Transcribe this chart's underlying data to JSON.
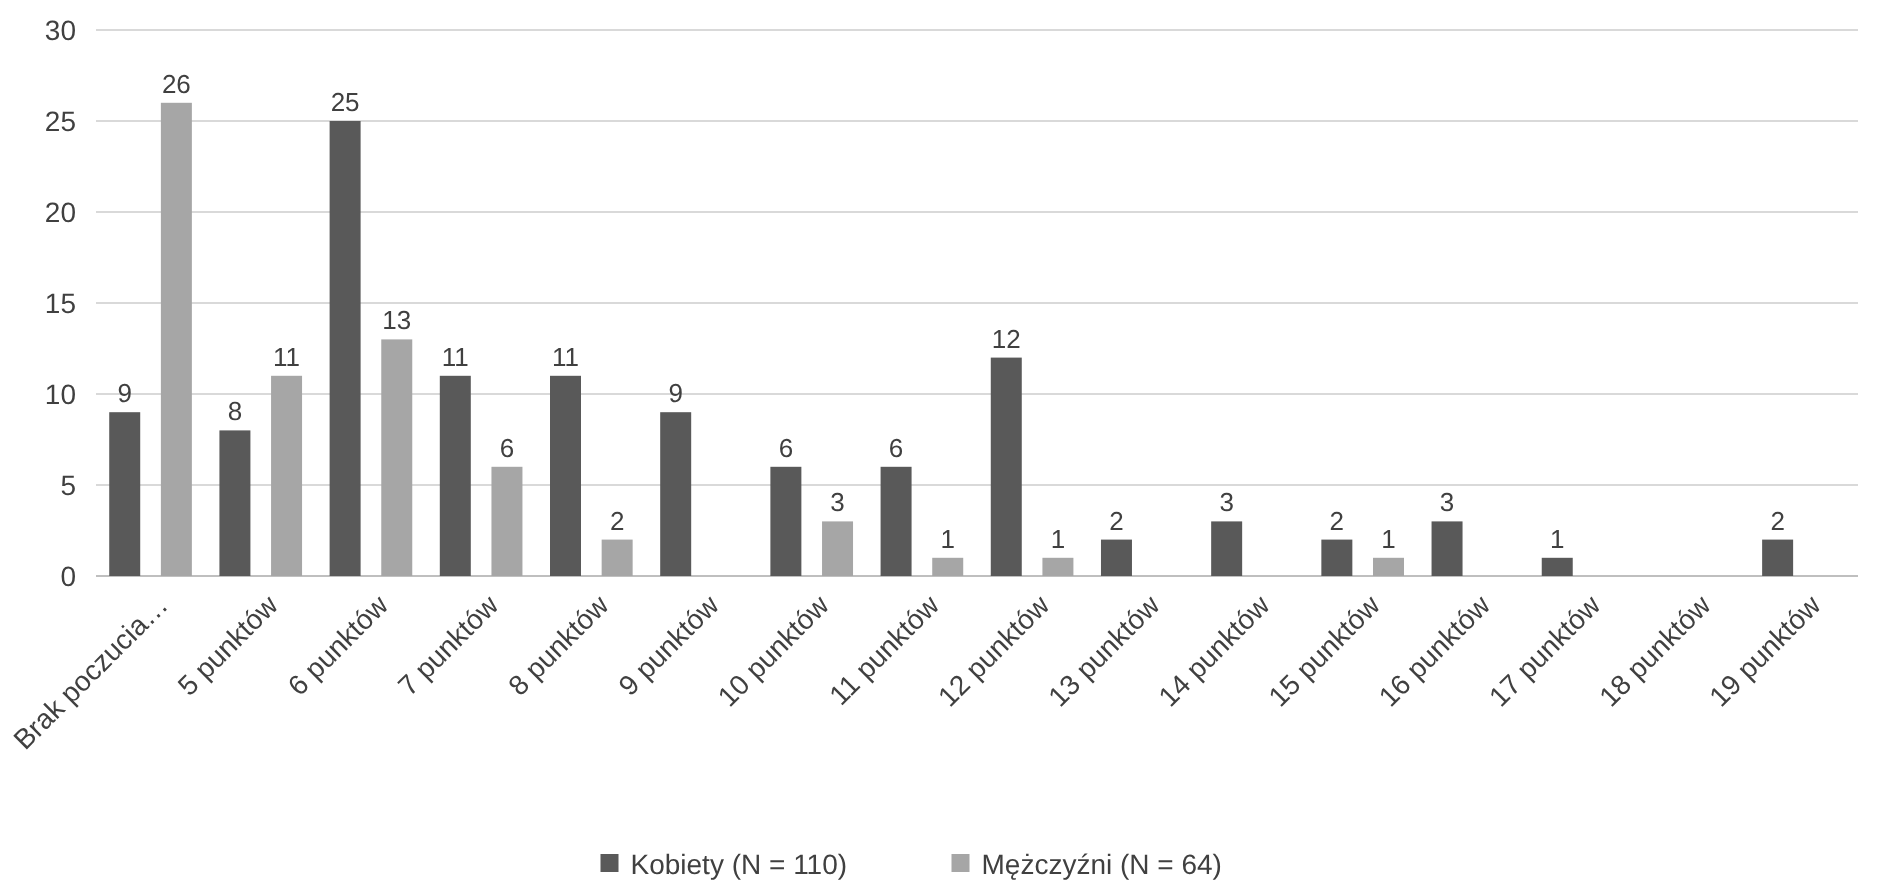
{
  "chart_data": {
    "type": "bar",
    "categories": [
      "Brak poczucia…",
      "5 punktów",
      "6 punktów",
      "7 punktów",
      "8 punktów",
      "9 punktów",
      "10 punktów",
      "11 punktów",
      "12 punktów",
      "13 punktów",
      "14 punktów",
      "15 punktów",
      "16 punktów",
      "17 punktów",
      "18 punktów",
      "19 punktów"
    ],
    "series": [
      {
        "name": "Kobiety (N = 110)",
        "color": "#595959",
        "values": [
          9,
          8,
          25,
          11,
          11,
          9,
          6,
          6,
          12,
          2,
          3,
          2,
          3,
          1,
          null,
          2
        ]
      },
      {
        "name": "Mężczyźni (N = 64)",
        "color": "#a6a6a6",
        "values": [
          26,
          11,
          13,
          6,
          2,
          null,
          3,
          1,
          1,
          null,
          null,
          1,
          null,
          null,
          null,
          null
        ]
      }
    ],
    "ylim": [
      0,
      30
    ],
    "yticks": [
      0,
      5,
      10,
      15,
      20,
      25,
      30
    ],
    "grid": "y",
    "legend": "bottom",
    "data_labels": true
  }
}
